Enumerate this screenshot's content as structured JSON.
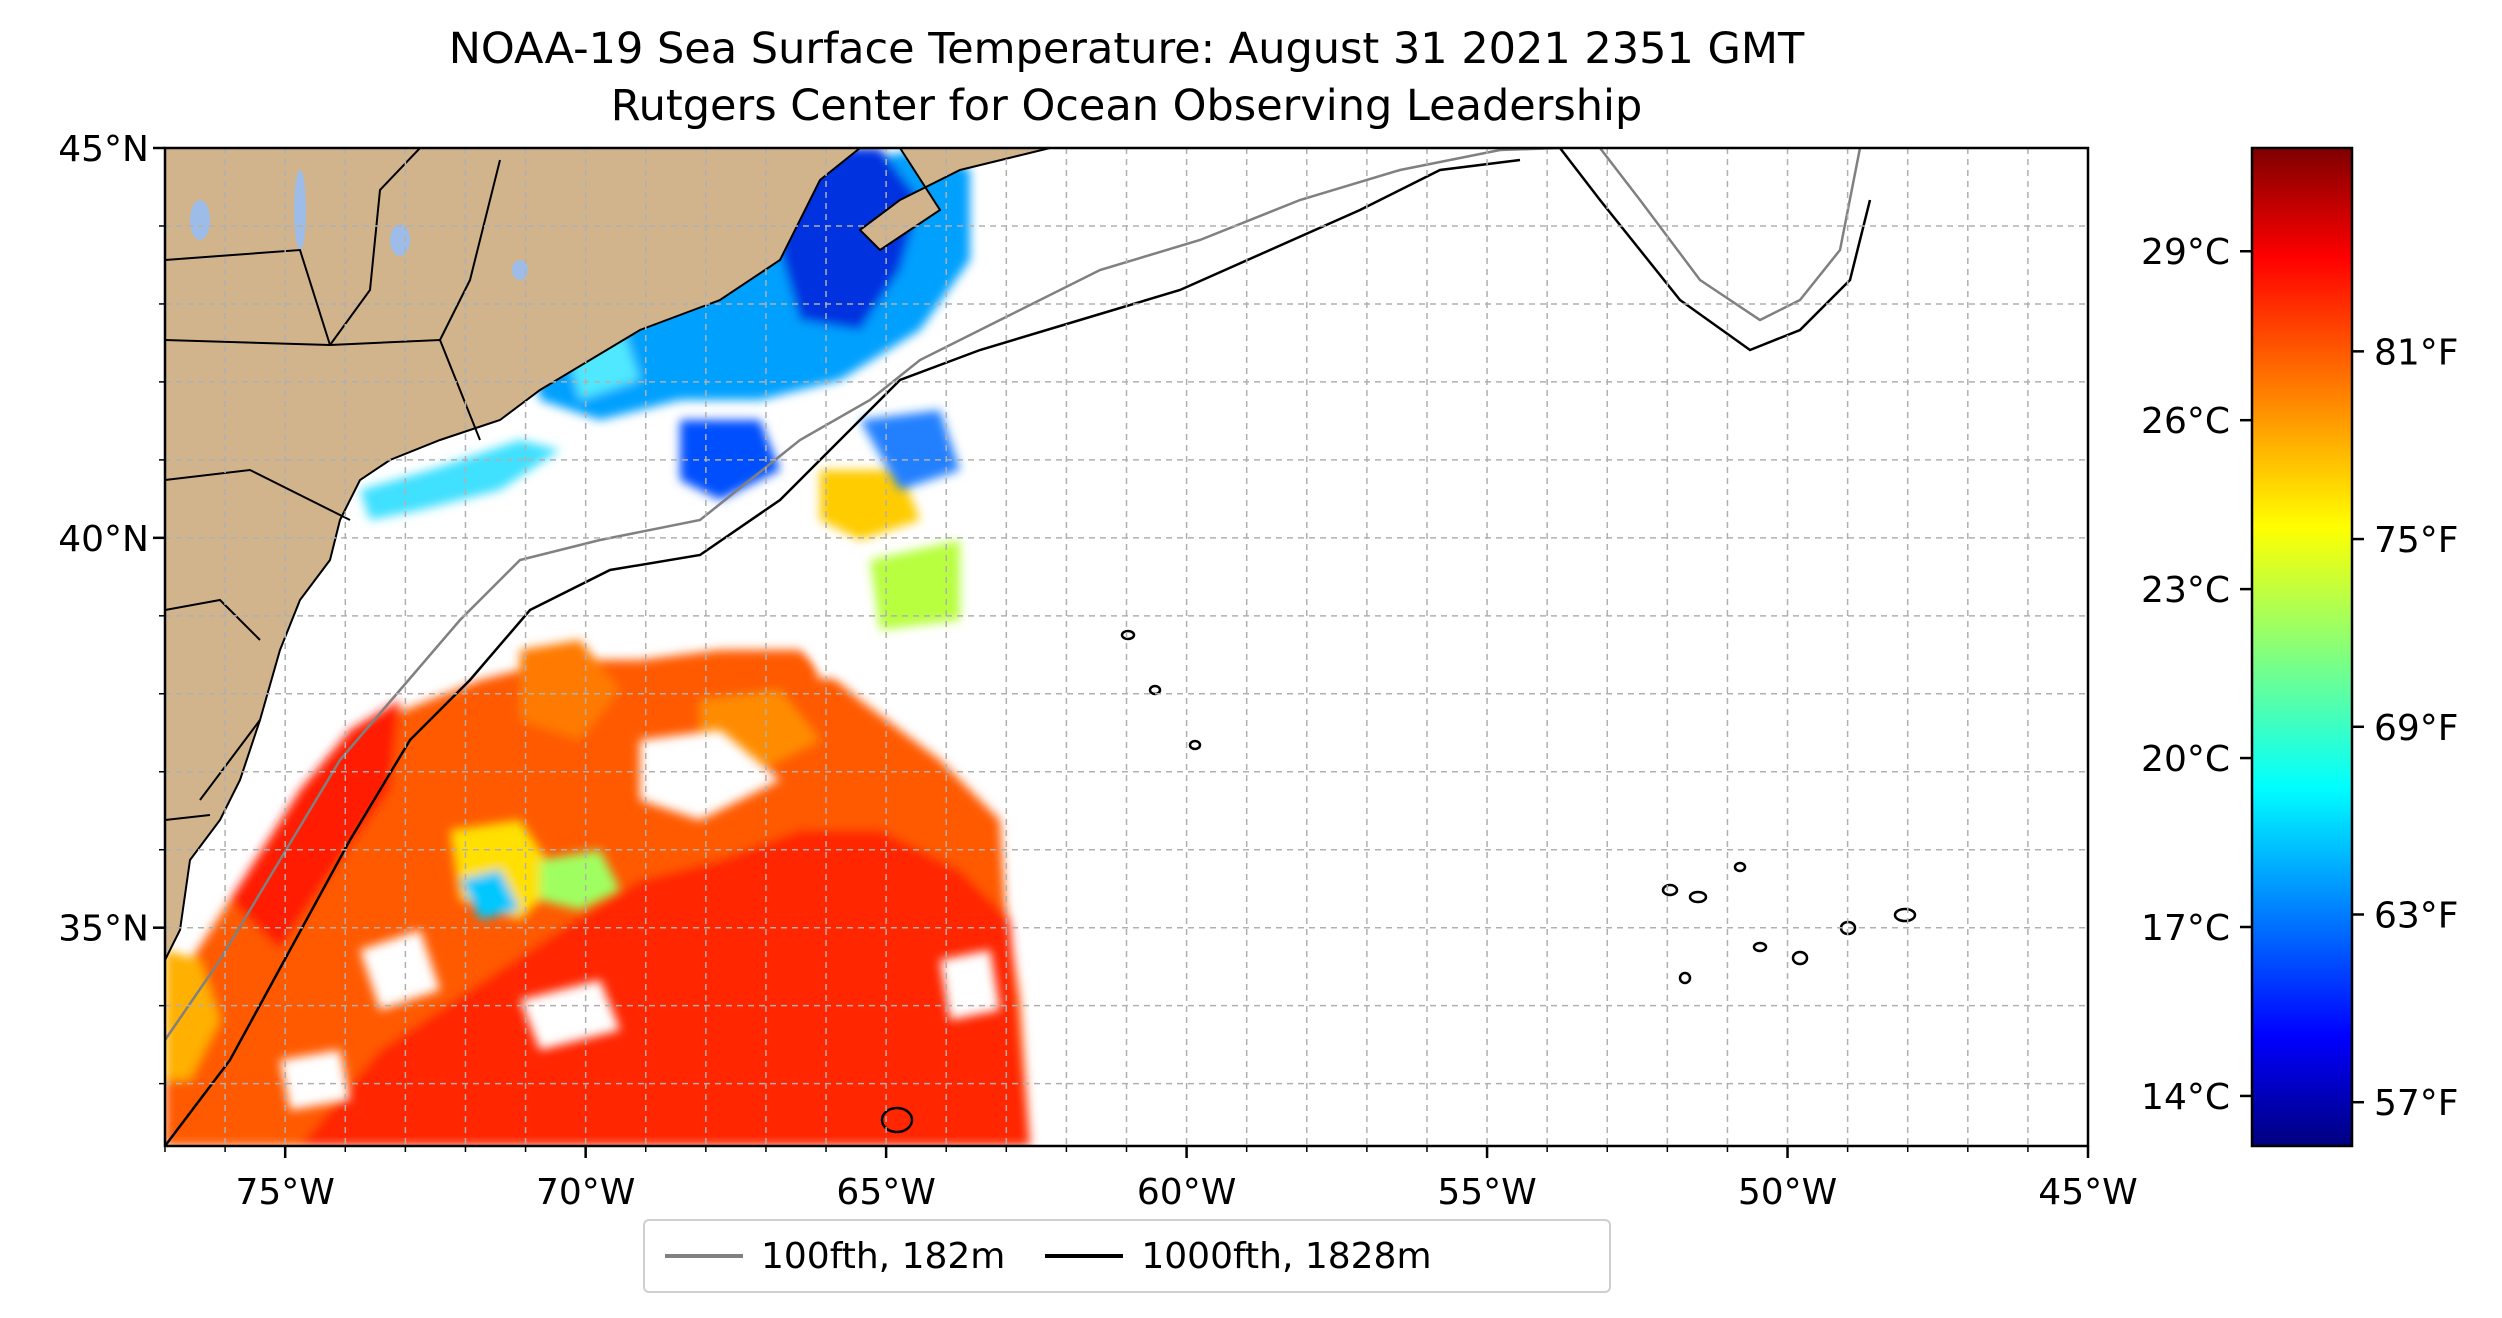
{
  "title": {
    "line1": "NOAA-19 Sea Surface Temperature: August 31 2021 2351 GMT",
    "line2": "Rutgers Center for Ocean Observing Leadership"
  },
  "map": {
    "lon_range": [
      -77,
      -45
    ],
    "lat_range": [
      32.2,
      45
    ],
    "lon_ticks": [
      {
        "value": -75,
        "label": "75°W"
      },
      {
        "value": -70,
        "label": "70°W"
      },
      {
        "value": -65,
        "label": "65°W"
      },
      {
        "value": -60,
        "label": "60°W"
      },
      {
        "value": -55,
        "label": "55°W"
      },
      {
        "value": -50,
        "label": "50°W"
      },
      {
        "value": -45,
        "label": "45°W"
      }
    ],
    "lat_ticks": [
      {
        "value": 35,
        "label": "35°N"
      },
      {
        "value": 40,
        "label": "40°N"
      },
      {
        "value": 45,
        "label": "45°N"
      }
    ],
    "grid": true,
    "land_color": "#d2b48c",
    "lake_color": "#9dbde8"
  },
  "colorbar": {
    "colormap": "jet",
    "range_f": [
      55.6,
      87.5
    ],
    "celsius_ticks": [
      {
        "value": 14,
        "label": "14°C"
      },
      {
        "value": 17,
        "label": "17°C"
      },
      {
        "value": 20,
        "label": "20°C"
      },
      {
        "value": 23,
        "label": "23°C"
      },
      {
        "value": 26,
        "label": "26°C"
      },
      {
        "value": 29,
        "label": "29°C"
      }
    ],
    "fahrenheit_ticks": [
      {
        "value": 57,
        "label": "57°F"
      },
      {
        "value": 63,
        "label": "63°F"
      },
      {
        "value": 69,
        "label": "69°F"
      },
      {
        "value": 75,
        "label": "75°F"
      },
      {
        "value": 81,
        "label": "81°F"
      }
    ]
  },
  "legend": {
    "items": [
      {
        "label": "100fth, 182m",
        "color": "#808080"
      },
      {
        "label": "1000fth, 1828m",
        "color": "#000000"
      }
    ]
  }
}
